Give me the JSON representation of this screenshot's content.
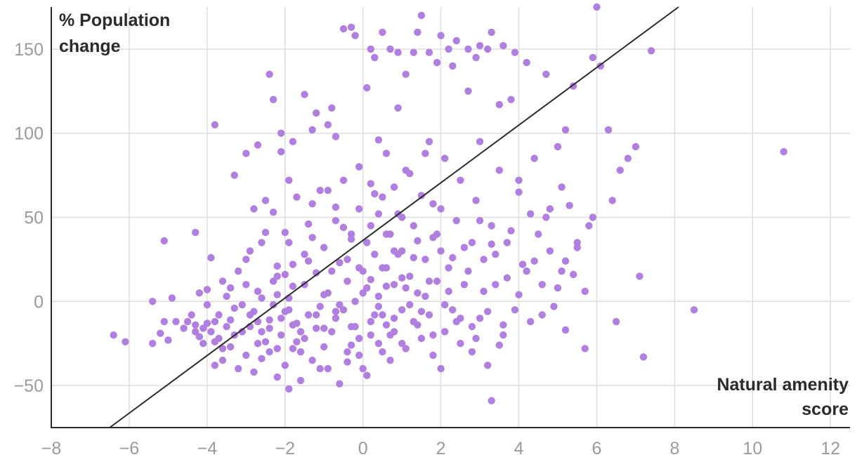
{
  "chart_data": {
    "type": "scatter",
    "title": "",
    "ylabel_lines": [
      "% Population",
      "change"
    ],
    "xlabel_lines": [
      "Natural amenity",
      "score"
    ],
    "xlim": [
      -8,
      12.5
    ],
    "ylim": [
      -75,
      175
    ],
    "x_ticks": [
      -8,
      -6,
      -4,
      -2,
      0,
      2,
      4,
      6,
      8,
      10,
      12
    ],
    "x_tick_labels": [
      "−8",
      "−6",
      "−4",
      "−2",
      "0",
      "2",
      "4",
      "6",
      "8",
      "10",
      "12"
    ],
    "y_ticks": [
      -50,
      0,
      50,
      100,
      150
    ],
    "y_tick_labels": [
      "−50",
      "0",
      "50",
      "100",
      "150"
    ],
    "grid": true,
    "point_color": "#b07fdf",
    "line_color": "#2b2b2b",
    "trend_line": {
      "x": [
        -6.5,
        8.1
      ],
      "y": [
        -75,
        175
      ]
    },
    "points": [
      [
        -6.4,
        -20
      ],
      [
        -6.1,
        -24
      ],
      [
        -5.4,
        0
      ],
      [
        -5.4,
        -25
      ],
      [
        -5.2,
        -19
      ],
      [
        -5.1,
        -12
      ],
      [
        -5.1,
        36
      ],
      [
        -5.0,
        -23
      ],
      [
        -4.9,
        2
      ],
      [
        -4.8,
        -12
      ],
      [
        -4.6,
        -16
      ],
      [
        -4.5,
        -12
      ],
      [
        -4.3,
        41
      ],
      [
        -4.3,
        -14
      ],
      [
        -4.3,
        -18
      ],
      [
        -4.2,
        -21
      ],
      [
        -4.2,
        5
      ],
      [
        -4.1,
        -25
      ],
      [
        -4.1,
        -16
      ],
      [
        -4.0,
        7
      ],
      [
        -4.0,
        -13
      ],
      [
        -3.9,
        -18
      ],
      [
        -3.9,
        26
      ],
      [
        -3.8,
        105
      ],
      [
        -3.8,
        -24
      ],
      [
        -3.8,
        -12
      ],
      [
        -3.8,
        -38
      ],
      [
        -3.7,
        -8
      ],
      [
        -3.6,
        12
      ],
      [
        -3.6,
        -35
      ],
      [
        -3.5,
        -15
      ],
      [
        -3.5,
        3
      ],
      [
        -3.4,
        -11
      ],
      [
        -3.4,
        -27
      ],
      [
        -3.3,
        75
      ],
      [
        -3.3,
        -20
      ],
      [
        -3.2,
        -40
      ],
      [
        -3.2,
        18
      ],
      [
        -3.1,
        -2
      ],
      [
        -3.0,
        -32
      ],
      [
        -3.0,
        25
      ],
      [
        -2.9,
        -8
      ],
      [
        -2.9,
        -15
      ],
      [
        -2.8,
        55
      ],
      [
        -2.8,
        -42
      ],
      [
        -2.7,
        6
      ],
      [
        -2.7,
        -25
      ],
      [
        -2.6,
        -18
      ],
      [
        -2.6,
        35
      ],
      [
        -2.5,
        41
      ],
      [
        -2.4,
        -11
      ],
      [
        -2.4,
        -30
      ],
      [
        -2.3,
        53
      ],
      [
        -2.3,
        -2
      ],
      [
        -2.3,
        120
      ],
      [
        -2.2,
        -45
      ],
      [
        -2.2,
        15
      ],
      [
        -2.1,
        89
      ],
      [
        -2.1,
        -20
      ],
      [
        -2.0,
        -38
      ],
      [
        -2.0,
        41
      ],
      [
        -1.9,
        -5
      ],
      [
        -1.9,
        -52
      ],
      [
        -1.9,
        2
      ],
      [
        -1.8,
        -28
      ],
      [
        -1.8,
        22
      ],
      [
        -1.7,
        62
      ],
      [
        -1.7,
        -13
      ],
      [
        -1.6,
        -47
      ],
      [
        -1.5,
        10
      ],
      [
        -1.5,
        -22
      ],
      [
        -1.4,
        46
      ],
      [
        -1.4,
        -8
      ],
      [
        -1.3,
        102
      ],
      [
        -1.3,
        -35
      ],
      [
        -1.2,
        17
      ],
      [
        -1.2,
        -16
      ],
      [
        -1.1,
        66
      ],
      [
        -1.1,
        -3
      ],
      [
        -1.0,
        -27
      ],
      [
        -1.0,
        32
      ],
      [
        -0.9,
        -40
      ],
      [
        -0.9,
        5
      ],
      [
        -0.8,
        115
      ],
      [
        -0.8,
        -18
      ],
      [
        -0.7,
        48
      ],
      [
        -0.7,
        -10
      ],
      [
        -0.6,
        23
      ],
      [
        -0.6,
        -49
      ],
      [
        -0.5,
        -5
      ],
      [
        -0.5,
        72
      ],
      [
        -0.4,
        12
      ],
      [
        -0.4,
        -30
      ],
      [
        -0.3,
        37
      ],
      [
        -0.3,
        -15
      ],
      [
        -0.2,
        158
      ],
      [
        -0.2,
        0
      ],
      [
        -0.1,
        -22
      ],
      [
        -0.1,
        55
      ],
      [
        0.0,
        18
      ],
      [
        0.0,
        -40
      ],
      [
        0.1,
        8
      ],
      [
        0.1,
        127
      ],
      [
        0.2,
        -12
      ],
      [
        0.2,
        45
      ],
      [
        0.3,
        145
      ],
      [
        0.3,
        28
      ],
      [
        0.4,
        -25
      ],
      [
        0.4,
        3
      ],
      [
        0.5,
        62
      ],
      [
        0.5,
        -8
      ],
      [
        0.6,
        88
      ],
      [
        0.6,
        20
      ],
      [
        0.7,
        -35
      ],
      [
        0.7,
        40
      ],
      [
        0.8,
        10
      ],
      [
        0.8,
        -18
      ],
      [
        0.9,
        115
      ],
      [
        0.9,
        52
      ],
      [
        1.0,
        -5
      ],
      [
        1.0,
        30
      ],
      [
        1.1,
        -28
      ],
      [
        1.1,
        78
      ],
      [
        1.2,
        15
      ],
      [
        1.3,
        -12
      ],
      [
        1.3,
        45
      ],
      [
        1.4,
        160
      ],
      [
        1.4,
        5
      ],
      [
        1.5,
        -22
      ],
      [
        1.5,
        63
      ],
      [
        1.6,
        25
      ],
      [
        1.7,
        -8
      ],
      [
        1.7,
        95
      ],
      [
        1.8,
        -32
      ],
      [
        1.8,
        38
      ],
      [
        1.9,
        12
      ],
      [
        2.0,
        -40
      ],
      [
        2.0,
        55
      ],
      [
        2.1,
        -18
      ],
      [
        2.1,
        85
      ],
      [
        2.2,
        20
      ],
      [
        2.3,
        -5
      ],
      [
        2.3,
        140
      ],
      [
        2.4,
        48
      ],
      [
        2.5,
        -25
      ],
      [
        2.5,
        72
      ],
      [
        2.6,
        10
      ],
      [
        2.7,
        125
      ],
      [
        2.8,
        -15
      ],
      [
        2.8,
        35
      ],
      [
        2.9,
        60
      ],
      [
        3.0,
        -10
      ],
      [
        3.0,
        95
      ],
      [
        3.1,
        25
      ],
      [
        3.2,
        -38
      ],
      [
        3.2,
        150
      ],
      [
        3.3,
        45
      ],
      [
        3.3,
        -59
      ],
      [
        3.4,
        10
      ],
      [
        3.5,
        78
      ],
      [
        3.6,
        -20
      ],
      [
        3.7,
        35
      ],
      [
        3.8,
        120
      ],
      [
        3.9,
        -5
      ],
      [
        4.0,
        65
      ],
      [
        4.1,
        22
      ],
      [
        4.2,
        142
      ],
      [
        4.3,
        -12
      ],
      [
        4.4,
        85
      ],
      [
        4.5,
        40
      ],
      [
        4.6,
        10
      ],
      [
        4.7,
        135
      ],
      [
        4.8,
        55
      ],
      [
        4.9,
        -3
      ],
      [
        5.0,
        92
      ],
      [
        5.1,
        18
      ],
      [
        5.2,
        -17
      ],
      [
        5.3,
        57
      ],
      [
        5.4,
        128
      ],
      [
        5.5,
        35
      ],
      [
        5.7,
        6
      ],
      [
        5.7,
        -28
      ],
      [
        5.8,
        45
      ],
      [
        5.9,
        50
      ],
      [
        6.0,
        175
      ],
      [
        6.1,
        140
      ],
      [
        6.3,
        102
      ],
      [
        6.4,
        60
      ],
      [
        6.5,
        -12
      ],
      [
        6.6,
        78
      ],
      [
        6.8,
        85
      ],
      [
        7.0,
        92
      ],
      [
        7.1,
        15
      ],
      [
        7.2,
        -33
      ],
      [
        7.4,
        149
      ],
      [
        8.5,
        -5
      ],
      [
        10.8,
        89
      ],
      [
        5.9,
        145
      ],
      [
        5.2,
        102
      ],
      [
        4.0,
        72
      ],
      [
        3.9,
        148
      ],
      [
        3.6,
        152
      ],
      [
        3.5,
        117
      ],
      [
        3.3,
        160
      ],
      [
        3.0,
        152
      ],
      [
        2.9,
        145
      ],
      [
        2.7,
        150
      ],
      [
        2.4,
        155
      ],
      [
        2.2,
        150
      ],
      [
        2.0,
        158
      ],
      [
        1.9,
        142
      ],
      [
        1.7,
        148
      ],
      [
        1.5,
        170
      ],
      [
        1.3,
        148
      ],
      [
        1.1,
        135
      ],
      [
        0.9,
        148
      ],
      [
        0.7,
        150
      ],
      [
        0.5,
        160
      ],
      [
        0.2,
        150
      ],
      [
        -0.3,
        163
      ],
      [
        -0.5,
        162
      ],
      [
        -0.7,
        98
      ],
      [
        -0.9,
        105
      ],
      [
        -1.2,
        112
      ],
      [
        -1.5,
        123
      ],
      [
        -1.8,
        95
      ],
      [
        -2.1,
        100
      ],
      [
        -2.4,
        135
      ],
      [
        -2.7,
        93
      ],
      [
        -3.0,
        88
      ],
      [
        -0.6,
        -2
      ],
      [
        -0.4,
        25
      ],
      [
        -0.2,
        -15
      ],
      [
        0.1,
        35
      ],
      [
        0.3,
        -8
      ],
      [
        0.5,
        20
      ],
      [
        0.7,
        -20
      ],
      [
        0.9,
        28
      ],
      [
        1.1,
        8
      ],
      [
        1.2,
        -2
      ],
      [
        -0.8,
        18
      ],
      [
        -1.0,
        4
      ],
      [
        -1.2,
        -8
      ],
      [
        -1.4,
        24
      ],
      [
        -1.6,
        -18
      ],
      [
        -1.8,
        9
      ],
      [
        -2.0,
        -6
      ],
      [
        -2.2,
        21
      ],
      [
        -2.4,
        -16
      ],
      [
        -2.6,
        2
      ],
      [
        0.0,
        5
      ],
      [
        0.2,
        13
      ],
      [
        0.4,
        -3
      ],
      [
        0.6,
        9
      ],
      [
        0.8,
        -10
      ],
      [
        1.0,
        14
      ],
      [
        1.4,
        -14
      ],
      [
        1.6,
        3
      ],
      [
        1.8,
        -20
      ],
      [
        2.2,
        6
      ],
      [
        -0.3,
        40
      ],
      [
        -0.1,
        -32
      ],
      [
        0.2,
        -20
      ],
      [
        0.4,
        52
      ],
      [
        0.6,
        -14
      ],
      [
        0.8,
        30
      ],
      [
        1.0,
        -25
      ],
      [
        1.3,
        26
      ],
      [
        1.5,
        -6
      ],
      [
        1.7,
        12
      ],
      [
        -3.6,
        -28
      ],
      [
        -3.4,
        8
      ],
      [
        -3.1,
        -18
      ],
      [
        -2.9,
        30
      ],
      [
        -2.6,
        -34
      ],
      [
        -2.3,
        12
      ],
      [
        -2.1,
        -10
      ],
      [
        -1.9,
        35
      ],
      [
        -1.7,
        -24
      ],
      [
        -1.5,
        28
      ],
      [
        2.4,
        -12
      ],
      [
        2.6,
        32
      ],
      [
        2.8,
        -30
      ],
      [
        3.0,
        48
      ],
      [
        3.2,
        -6
      ],
      [
        3.4,
        28
      ],
      [
        3.6,
        -14
      ],
      [
        3.8,
        42
      ],
      [
        4.0,
        4
      ],
      [
        4.2,
        18
      ],
      [
        -1.3,
        58
      ],
      [
        -1.1,
        -40
      ],
      [
        -0.9,
        66
      ],
      [
        -0.7,
        -6
      ],
      [
        -0.5,
        44
      ],
      [
        -0.3,
        -26
      ],
      [
        -0.1,
        20
      ],
      [
        0.1,
        -44
      ],
      [
        0.3,
        64
      ],
      [
        0.5,
        -30
      ],
      [
        1.9,
        40
      ],
      [
        2.1,
        -2
      ],
      [
        2.3,
        26
      ],
      [
        2.5,
        -10
      ],
      [
        2.7,
        18
      ],
      [
        2.9,
        -22
      ],
      [
        3.1,
        6
      ],
      [
        3.3,
        34
      ],
      [
        3.5,
        -26
      ],
      [
        3.7,
        14
      ],
      [
        -2.8,
        -6
      ],
      [
        -2.5,
        60
      ],
      [
        -2.2,
        -28
      ],
      [
        -1.9,
        72
      ],
      [
        -1.6,
        -30
      ],
      [
        -1.3,
        38
      ],
      [
        -1.0,
        -16
      ],
      [
        -0.7,
        56
      ],
      [
        -0.4,
        -36
      ],
      [
        -0.1,
        80
      ],
      [
        0.2,
        70
      ],
      [
        0.4,
        96
      ],
      [
        0.6,
        40
      ],
      [
        0.8,
        68
      ],
      [
        1.0,
        50
      ],
      [
        1.2,
        76
      ],
      [
        1.4,
        36
      ],
      [
        1.6,
        88
      ],
      [
        1.8,
        58
      ],
      [
        2.0,
        30
      ],
      [
        4.4,
        24
      ],
      [
        4.6,
        -8
      ],
      [
        4.8,
        30
      ],
      [
        5.0,
        8
      ],
      [
        5.2,
        24
      ],
      [
        5.4,
        16
      ],
      [
        4.3,
        52
      ],
      [
        4.7,
        50
      ],
      [
        5.1,
        68
      ],
      [
        5.5,
        32
      ],
      [
        -4.4,
        -8
      ],
      [
        -4.0,
        -2
      ],
      [
        -3.7,
        -22
      ],
      [
        -3.3,
        -4
      ],
      [
        -3.0,
        10
      ],
      [
        -2.7,
        -12
      ],
      [
        -2.5,
        -24
      ],
      [
        -2.2,
        4
      ],
      [
        -2.0,
        16
      ],
      [
        -1.8,
        -14
      ]
    ]
  }
}
